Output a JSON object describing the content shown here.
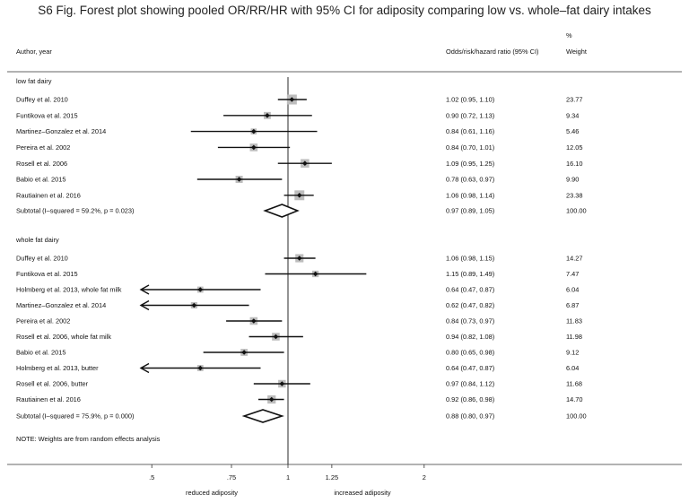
{
  "title": "S6 Fig. Forest plot showing pooled OR/RR/HR with 95% CI for adiposity comparing low vs. whole–fat dairy intakes",
  "headers": {
    "author": "Author, year",
    "ratio": "Odds/risk/hazard ratio (95% CI)",
    "weight_pct": "%",
    "weight": "Weight"
  },
  "footnote": "NOTE: Weights are from random effects analysis",
  "axis": {
    "ticks": [
      ".5",
      ".75",
      "1",
      "1.25",
      "2"
    ],
    "left_label": "reduced adiposity",
    "right_label": "increased adiposity"
  },
  "chart_data": {
    "type": "forest",
    "title": "S6 Fig. Forest plot showing pooled OR/RR/HR with 95% CI for adiposity comparing low vs. whole–fat dairy intakes",
    "xscale": "log",
    "xticks": [
      0.5,
      0.75,
      1,
      1.25,
      2
    ],
    "null_line": 1,
    "groups": [
      {
        "name": "low fat dairy",
        "studies": [
          {
            "label": "Duffey et al. 2010",
            "est": 1.02,
            "lo": 0.95,
            "hi": 1.1,
            "text": "1.02 (0.95, 1.10)",
            "weight": "23.77",
            "w": 23.77
          },
          {
            "label": "Funtikova et al. 2015",
            "est": 0.9,
            "lo": 0.72,
            "hi": 1.13,
            "text": "0.90 (0.72, 1.13)",
            "weight": "9.34",
            "w": 9.34
          },
          {
            "label": "Martinez–Gonzalez et al. 2014",
            "est": 0.84,
            "lo": 0.61,
            "hi": 1.16,
            "text": "0.84 (0.61, 1.16)",
            "weight": "5.46",
            "w": 5.46
          },
          {
            "label": "Pereira et al. 2002",
            "est": 0.84,
            "lo": 0.7,
            "hi": 1.01,
            "text": "0.84 (0.70, 1.01)",
            "weight": "12.05",
            "w": 12.05
          },
          {
            "label": "Rosell et al. 2006",
            "est": 1.09,
            "lo": 0.95,
            "hi": 1.25,
            "text": "1.09 (0.95, 1.25)",
            "weight": "16.10",
            "w": 16.1
          },
          {
            "label": "Babio et al. 2015",
            "est": 0.78,
            "lo": 0.63,
            "hi": 0.97,
            "text": "0.78 (0.63, 0.97)",
            "weight": "9.90",
            "w": 9.9
          },
          {
            "label": "Rautiainen et al. 2016",
            "est": 1.06,
            "lo": 0.98,
            "hi": 1.14,
            "text": "1.06 (0.98, 1.14)",
            "weight": "23.38",
            "w": 23.38
          }
        ],
        "subtotal": {
          "label": "Subtotal  (I–squared = 59.2%, p = 0.023)",
          "est": 0.97,
          "lo": 0.89,
          "hi": 1.05,
          "text": "0.97 (0.89, 1.05)",
          "weight": "100.00"
        }
      },
      {
        "name": "whole fat dairy",
        "studies": [
          {
            "label": "Duffey et al. 2010",
            "est": 1.06,
            "lo": 0.98,
            "hi": 1.15,
            "text": "1.06 (0.98, 1.15)",
            "weight": "14.27",
            "w": 14.27
          },
          {
            "label": "Funtikova et al. 2015",
            "est": 1.15,
            "lo": 0.89,
            "hi": 1.49,
            "text": "1.15 (0.89, 1.49)",
            "weight": "7.47",
            "w": 7.47
          },
          {
            "label": "Holmberg et al. 2013, whole fat milk",
            "est": 0.64,
            "lo": 0.47,
            "hi": 0.87,
            "text": "0.64 (0.47, 0.87)",
            "weight": "6.04",
            "w": 6.04
          },
          {
            "label": "Martinez–Gonzalez et al. 2014",
            "est": 0.62,
            "lo": 0.47,
            "hi": 0.82,
            "text": "0.62 (0.47, 0.82)",
            "weight": "6.87",
            "w": 6.87
          },
          {
            "label": "Pereira et al. 2002",
            "est": 0.84,
            "lo": 0.73,
            "hi": 0.97,
            "text": "0.84 (0.73, 0.97)",
            "weight": "11.83",
            "w": 11.83
          },
          {
            "label": "Rosell et al. 2006, whole fat milk",
            "est": 0.94,
            "lo": 0.82,
            "hi": 1.08,
            "text": "0.94 (0.82, 1.08)",
            "weight": "11.98",
            "w": 11.98
          },
          {
            "label": "Babio et al. 2015",
            "est": 0.8,
            "lo": 0.65,
            "hi": 0.98,
            "text": "0.80 (0.65, 0.98)",
            "weight": "9.12",
            "w": 9.12
          },
          {
            "label": "Holmberg et al. 2013, butter",
            "est": 0.64,
            "lo": 0.47,
            "hi": 0.87,
            "text": "0.64 (0.47, 0.87)",
            "weight": "6.04",
            "w": 6.04
          },
          {
            "label": "Rosell et al. 2006, butter",
            "est": 0.97,
            "lo": 0.84,
            "hi": 1.12,
            "text": "0.97 (0.84, 1.12)",
            "weight": "11.68",
            "w": 11.68
          },
          {
            "label": "Rautiainen et al. 2016",
            "est": 0.92,
            "lo": 0.86,
            "hi": 0.98,
            "text": "0.92 (0.86, 0.98)",
            "weight": "14.70",
            "w": 14.7
          }
        ],
        "subtotal": {
          "label": "Subtotal  (I–squared = 75.9%, p = 0.000)",
          "est": 0.88,
          "lo": 0.8,
          "hi": 0.97,
          "text": "0.88 (0.80, 0.97)",
          "weight": "100.00"
        }
      }
    ]
  }
}
